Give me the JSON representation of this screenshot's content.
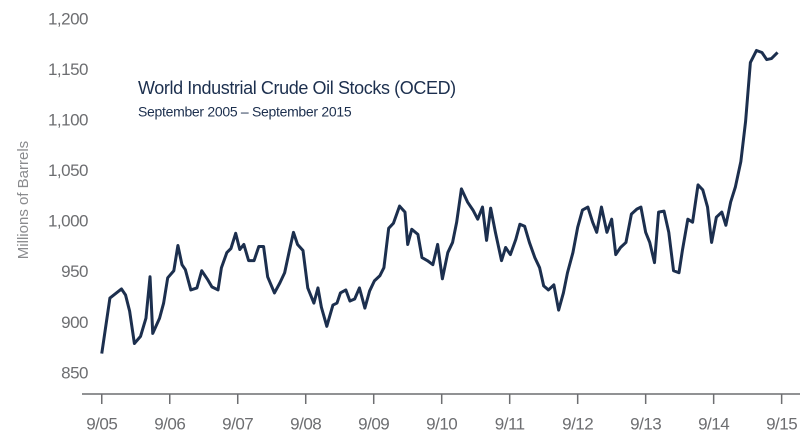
{
  "chart_data": {
    "type": "line",
    "title": "World Industrial Crude Oil Stocks (OCED)",
    "subtitle": "September 2005 – September 2015",
    "y_label": "Millions of Barrels",
    "color": "#1c2f4e",
    "xlim": [
      2005.35,
      2015.94
    ],
    "xticks": [
      {
        "value": 2005.67,
        "label": "9/05"
      },
      {
        "value": 2006.67,
        "label": "9/06"
      },
      {
        "value": 2007.67,
        "label": "9/07"
      },
      {
        "value": 2008.67,
        "label": "9/08"
      },
      {
        "value": 2009.67,
        "label": "9/09"
      },
      {
        "value": 2010.67,
        "label": "9/10"
      },
      {
        "value": 2011.67,
        "label": "9/11"
      },
      {
        "value": 2012.67,
        "label": "9/12"
      },
      {
        "value": 2013.67,
        "label": "9/13"
      },
      {
        "value": 2014.67,
        "label": "9/14"
      },
      {
        "value": 2015.67,
        "label": "9/15"
      }
    ],
    "ylim": [
      830,
      1215
    ],
    "yticks": [
      850,
      900,
      950,
      {
        "value": 1000,
        "label": "1,000"
      },
      {
        "value": 1050,
        "label": "1,050"
      },
      {
        "value": 1100,
        "label": "1,100"
      },
      {
        "value": 1150,
        "label": "1,150"
      },
      {
        "value": 1200,
        "label": "1,200"
      }
    ],
    "x": [
      2005.67,
      2005.79,
      2005.96,
      2006.02,
      2006.08,
      2006.15,
      2006.24,
      2006.32,
      2006.38,
      2006.42,
      2006.52,
      2006.58,
      2006.64,
      2006.73,
      2006.79,
      2006.85,
      2006.9,
      2006.98,
      2007.07,
      2007.14,
      2007.23,
      2007.29,
      2007.38,
      2007.43,
      2007.51,
      2007.57,
      2007.64,
      2007.7,
      2007.76,
      2007.83,
      2007.91,
      2007.98,
      2008.05,
      2008.11,
      2008.21,
      2008.29,
      2008.36,
      2008.43,
      2008.49,
      2008.55,
      2008.63,
      2008.7,
      2008.79,
      2008.85,
      2008.9,
      2008.98,
      2009.07,
      2009.13,
      2009.18,
      2009.26,
      2009.32,
      2009.39,
      2009.46,
      2009.54,
      2009.61,
      2009.68,
      2009.76,
      2009.82,
      2009.89,
      2009.96,
      2010.05,
      2010.13,
      2010.17,
      2010.23,
      2010.32,
      2010.38,
      2010.46,
      2010.54,
      2010.61,
      2010.68,
      2010.76,
      2010.83,
      2010.89,
      2010.96,
      2011.05,
      2011.13,
      2011.2,
      2011.27,
      2011.33,
      2011.39,
      2011.46,
      2011.55,
      2011.61,
      2011.68,
      2011.76,
      2011.82,
      2011.89,
      2011.96,
      2012.04,
      2012.11,
      2012.17,
      2012.24,
      2012.32,
      2012.39,
      2012.46,
      2012.52,
      2012.6,
      2012.67,
      2012.74,
      2012.82,
      2012.89,
      2012.95,
      2013.02,
      2013.1,
      2013.17,
      2013.23,
      2013.3,
      2013.38,
      2013.46,
      2013.54,
      2013.6,
      2013.67,
      2013.73,
      2013.8,
      2013.86,
      2013.94,
      2014.01,
      2014.08,
      2014.16,
      2014.21,
      2014.29,
      2014.36,
      2014.44,
      2014.51,
      2014.58,
      2014.64,
      2014.71,
      2014.79,
      2014.85,
      2014.92,
      2014.99,
      2015.07,
      2015.14,
      2015.21,
      2015.3,
      2015.38,
      2015.45,
      2015.52,
      2015.61
    ],
    "values": [
      870,
      925,
      934,
      928,
      912,
      880,
      887,
      905,
      946,
      890,
      905,
      920,
      945,
      952,
      977,
      958,
      953,
      933,
      935,
      952,
      943,
      936,
      933,
      955,
      970,
      974,
      989,
      973,
      978,
      962,
      962,
      976,
      976,
      946,
      930,
      940,
      950,
      972,
      990,
      978,
      972,
      935,
      920,
      935,
      916,
      897,
      918,
      920,
      930,
      933,
      922,
      924,
      935,
      915,
      932,
      942,
      947,
      955,
      994,
      999,
      1016,
      1010,
      978,
      993,
      988,
      965,
      962,
      958,
      978,
      944,
      970,
      980,
      1000,
      1033,
      1020,
      1012,
      1003,
      1015,
      982,
      1014,
      990,
      962,
      975,
      968,
      983,
      998,
      996,
      980,
      965,
      955,
      937,
      933,
      938,
      913,
      930,
      950,
      970,
      995,
      1012,
      1015,
      1000,
      990,
      1015,
      990,
      1003,
      968,
      975,
      980,
      1008,
      1013,
      1015,
      990,
      980,
      960,
      1010,
      1011,
      990,
      952,
      950,
      972,
      1003,
      1000,
      1037,
      1032,
      1015,
      980,
      1005,
      1010,
      997,
      1020,
      1035,
      1060,
      1100,
      1158,
      1170,
      1168,
      1161,
      1162,
      1168
    ]
  }
}
